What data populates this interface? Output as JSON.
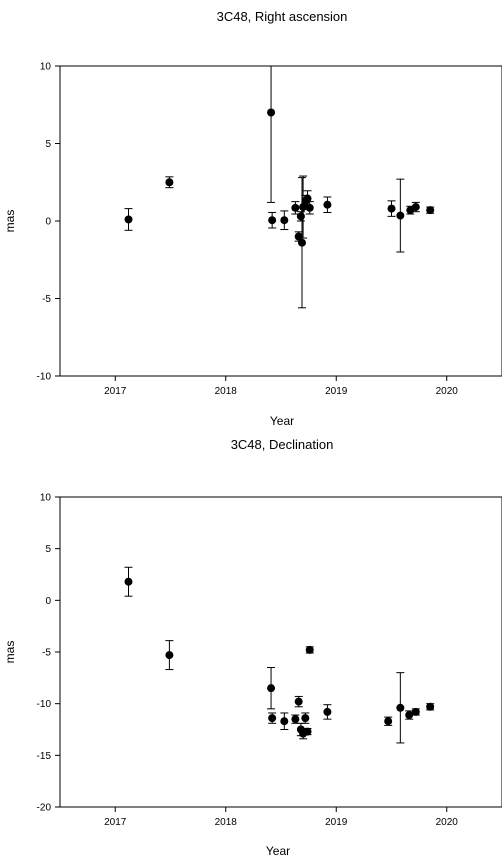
{
  "chart_data": [
    {
      "type": "scatter",
      "title": "3C48, Right ascension",
      "xlabel": "Year",
      "ylabel": "mas",
      "xlim": [
        2016.5,
        2020.5
      ],
      "ylim": [
        -10,
        10
      ],
      "xticks": [
        "2017",
        "2018",
        "2019",
        "2020"
      ],
      "yticks": [
        "10",
        "5",
        "0",
        "-5",
        "-10"
      ],
      "grid": false,
      "points": [
        {
          "x": 2017.12,
          "y": 0.1,
          "err": 0.7
        },
        {
          "x": 2017.49,
          "y": 2.5,
          "err": 0.35
        },
        {
          "x": 2018.41,
          "y": 7.0,
          "err": 5.8
        },
        {
          "x": 2018.42,
          "y": 0.05,
          "err": 0.5
        },
        {
          "x": 2018.53,
          "y": 0.05,
          "err": 0.6
        },
        {
          "x": 2018.63,
          "y": 0.85,
          "err": 0.4
        },
        {
          "x": 2018.66,
          "y": -1.0,
          "err": 0.3
        },
        {
          "x": 2018.68,
          "y": 0.3,
          "err": 0.3
        },
        {
          "x": 2018.69,
          "y": -1.4,
          "err": 4.2
        },
        {
          "x": 2018.7,
          "y": 0.9,
          "err": 2.0
        },
        {
          "x": 2018.72,
          "y": 1.25,
          "err": 0.4
        },
        {
          "x": 2018.74,
          "y": 1.45,
          "err": 0.5
        },
        {
          "x": 2018.76,
          "y": 0.85,
          "err": 0.4
        },
        {
          "x": 2018.92,
          "y": 1.05,
          "err": 0.5
        },
        {
          "x": 2019.5,
          "y": 0.8,
          "err": 0.5
        },
        {
          "x": 2019.58,
          "y": 0.35,
          "err": 2.35
        },
        {
          "x": 2019.67,
          "y": 0.7,
          "err": 0.25
        },
        {
          "x": 2019.72,
          "y": 0.9,
          "err": 0.3
        },
        {
          "x": 2019.85,
          "y": 0.7,
          "err": 0.2
        }
      ]
    },
    {
      "type": "scatter",
      "title": "3C48, Declination",
      "xlabel": "Year",
      "ylabel": "mas",
      "xlim": [
        2016.5,
        2020.5
      ],
      "ylim": [
        -20,
        10
      ],
      "xticks": [
        "2017",
        "2018",
        "2019",
        "2020"
      ],
      "yticks": [
        "10",
        "5",
        "0",
        "-5",
        "-10",
        "-15",
        "-20"
      ],
      "grid": false,
      "points": [
        {
          "x": 2017.12,
          "y": 1.8,
          "err": 1.4
        },
        {
          "x": 2017.49,
          "y": -5.3,
          "err": 1.4
        },
        {
          "x": 2018.41,
          "y": -8.5,
          "err": 2.0
        },
        {
          "x": 2018.42,
          "y": -11.4,
          "err": 0.5
        },
        {
          "x": 2018.53,
          "y": -11.7,
          "err": 0.8
        },
        {
          "x": 2018.63,
          "y": -11.5,
          "err": 0.4
        },
        {
          "x": 2018.66,
          "y": -9.8,
          "err": 0.5
        },
        {
          "x": 2018.68,
          "y": -12.5,
          "err": 0.6
        },
        {
          "x": 2018.7,
          "y": -12.9,
          "err": 0.5
        },
        {
          "x": 2018.72,
          "y": -11.4,
          "err": 0.5
        },
        {
          "x": 2018.74,
          "y": -12.7,
          "err": 0.3
        },
        {
          "x": 2018.76,
          "y": -4.8,
          "err": 0.3
        },
        {
          "x": 2018.92,
          "y": -10.8,
          "err": 0.7
        },
        {
          "x": 2019.47,
          "y": -11.7,
          "err": 0.4
        },
        {
          "x": 2019.58,
          "y": -10.4,
          "err": 3.4
        },
        {
          "x": 2019.66,
          "y": -11.1,
          "err": 0.4
        },
        {
          "x": 2019.72,
          "y": -10.8,
          "err": 0.3
        },
        {
          "x": 2019.85,
          "y": -10.3,
          "err": 0.3
        }
      ]
    }
  ]
}
